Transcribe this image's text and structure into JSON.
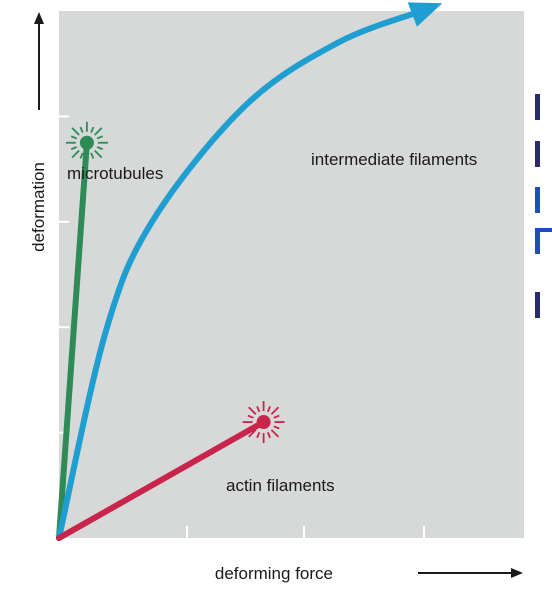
{
  "chart_data": {
    "type": "line",
    "xlabel": "deforming force",
    "ylabel": "deformation",
    "grid": false,
    "x_ticks": 4,
    "y_ticks": 4,
    "series": [
      {
        "name": "microtubules",
        "color": "#2e8b57",
        "shape": "straight line ending in rupture burst",
        "from": [
          0,
          0
        ],
        "to": [
          0.06,
          0.75
        ],
        "rupture": true
      },
      {
        "name": "intermediate filaments",
        "color": "#1f9ed1",
        "shape": "concave curve ending in arrow (no rupture)",
        "points": [
          [
            0,
            0
          ],
          [
            0.1,
            0.39
          ],
          [
            0.2,
            0.6
          ],
          [
            0.4,
            0.82
          ],
          [
            0.6,
            0.94
          ],
          [
            0.78,
            1.0
          ]
        ],
        "rupture": false,
        "arrow": true
      },
      {
        "name": "actin filaments",
        "color": "#c9244b",
        "shape": "straight line ending in rupture burst",
        "from": [
          0,
          0
        ],
        "to": [
          0.44,
          0.22
        ],
        "rupture": true
      }
    ],
    "labels": [
      {
        "text": "microtubules",
        "series": "microtubules"
      },
      {
        "text": "intermediate filaments",
        "series": "intermediate filaments"
      },
      {
        "text": "actin filaments",
        "series": "actin filaments"
      }
    ]
  },
  "clipped_text_colors": [
    "#2a2a6e",
    "#2a2a6e",
    "#1c4fb8",
    "#1c4fb8",
    "#2a2a6e"
  ]
}
